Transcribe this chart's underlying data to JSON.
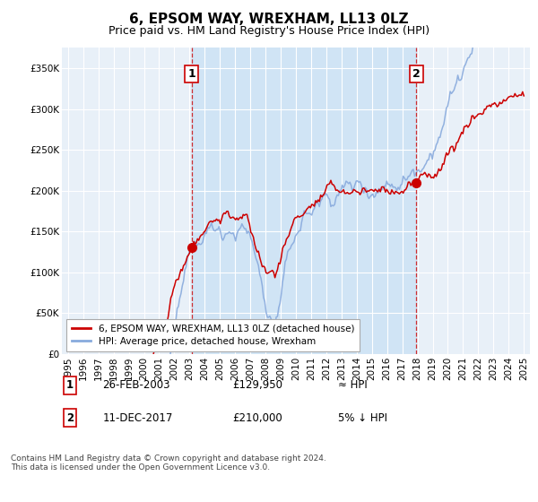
{
  "title": "6, EPSOM WAY, WREXHAM, LL13 0LZ",
  "subtitle": "Price paid vs. HM Land Registry's House Price Index (HPI)",
  "ylabel_ticks": [
    "£0",
    "£50K",
    "£100K",
    "£150K",
    "£200K",
    "£250K",
    "£300K",
    "£350K"
  ],
  "ytick_values": [
    0,
    50000,
    100000,
    150000,
    200000,
    250000,
    300000,
    350000
  ],
  "ylim": [
    0,
    375000
  ],
  "xlim_start": 1994.6,
  "xlim_end": 2025.4,
  "xticks": [
    1995,
    1996,
    1997,
    1998,
    1999,
    2000,
    2001,
    2002,
    2003,
    2004,
    2005,
    2006,
    2007,
    2008,
    2009,
    2010,
    2011,
    2012,
    2013,
    2014,
    2015,
    2016,
    2017,
    2018,
    2019,
    2020,
    2021,
    2022,
    2023,
    2024,
    2025
  ],
  "red_line_color": "#cc0000",
  "blue_line_color": "#88aadd",
  "shade_color": "#ddeeff",
  "vline_color": "#cc0000",
  "marker1_x": 2003.15,
  "marker1_y": 129950,
  "marker2_x": 2017.92,
  "marker2_y": 210000,
  "legend_label1": "6, EPSOM WAY, WREXHAM, LL13 0LZ (detached house)",
  "legend_label2": "HPI: Average price, detached house, Wrexham",
  "table_row1_num": "1",
  "table_row1_date": "26-FEB-2003",
  "table_row1_price": "£129,950",
  "table_row1_rel": "≈ HPI",
  "table_row2_num": "2",
  "table_row2_date": "11-DEC-2017",
  "table_row2_price": "£210,000",
  "table_row2_rel": "5% ↓ HPI",
  "footer": "Contains HM Land Registry data © Crown copyright and database right 2024.\nThis data is licensed under the Open Government Licence v3.0.",
  "bg_color": "#ffffff",
  "plot_bg_color": "#e8f0f8",
  "shade_between_color": "#d0e4f5",
  "grid_color": "#ffffff",
  "title_fontsize": 11,
  "subtitle_fontsize": 9,
  "tick_fontsize": 7.5
}
